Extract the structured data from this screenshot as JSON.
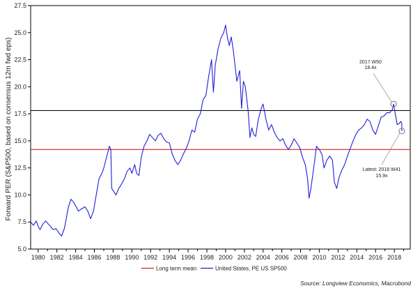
{
  "chart_data": {
    "type": "line",
    "title": "",
    "xlabel": "",
    "ylabel": "Forward PER (S&P500, based on consensus 12m fwd eps)",
    "xlim": [
      1979.2,
      2019.7
    ],
    "ylim": [
      5.0,
      27.5
    ],
    "y_ticks": [
      "5.0",
      "7.5",
      "10.0",
      "12.5",
      "15.0",
      "17.5",
      "20.0",
      "22.5",
      "25.0",
      "27.5"
    ],
    "x_ticks": [
      "1980",
      "1982",
      "1984",
      "1986",
      "1988",
      "1990",
      "1992",
      "1994",
      "1996",
      "1998",
      "2000",
      "2002",
      "2004",
      "2006",
      "2008",
      "2010",
      "2012",
      "2014",
      "2016",
      "2018"
    ],
    "grid": false,
    "legend_position": "bottom",
    "series": [
      {
        "name": "United States, PE US SP500",
        "color": "#1f1fd6",
        "points": [
          [
            1979.2,
            7.5
          ],
          [
            1979.5,
            7.2
          ],
          [
            1979.8,
            7.6
          ],
          [
            1980.0,
            7.1
          ],
          [
            1980.2,
            6.8
          ],
          [
            1980.5,
            7.3
          ],
          [
            1980.8,
            7.6
          ],
          [
            1981.0,
            7.4
          ],
          [
            1981.3,
            7.1
          ],
          [
            1981.6,
            6.8
          ],
          [
            1981.9,
            6.9
          ],
          [
            1982.2,
            6.5
          ],
          [
            1982.5,
            6.2
          ],
          [
            1982.8,
            6.9
          ],
          [
            1983.0,
            7.8
          ],
          [
            1983.2,
            8.8
          ],
          [
            1983.5,
            9.6
          ],
          [
            1983.8,
            9.3
          ],
          [
            1984.0,
            9.0
          ],
          [
            1984.3,
            8.5
          ],
          [
            1984.6,
            8.7
          ],
          [
            1985.0,
            8.9
          ],
          [
            1985.3,
            8.5
          ],
          [
            1985.6,
            7.8
          ],
          [
            1985.9,
            8.5
          ],
          [
            1986.2,
            10.0
          ],
          [
            1986.5,
            11.5
          ],
          [
            1986.8,
            12.0
          ],
          [
            1987.0,
            12.5
          ],
          [
            1987.3,
            13.5
          ],
          [
            1987.6,
            14.5
          ],
          [
            1987.75,
            14.2
          ],
          [
            1987.85,
            10.6
          ],
          [
            1988.0,
            10.4
          ],
          [
            1988.3,
            10.0
          ],
          [
            1988.6,
            10.6
          ],
          [
            1988.9,
            11.0
          ],
          [
            1989.2,
            11.5
          ],
          [
            1989.5,
            12.2
          ],
          [
            1989.8,
            12.5
          ],
          [
            1990.0,
            12.0
          ],
          [
            1990.3,
            12.8
          ],
          [
            1990.5,
            12.0
          ],
          [
            1990.75,
            11.8
          ],
          [
            1991.0,
            13.5
          ],
          [
            1991.3,
            14.5
          ],
          [
            1991.6,
            15.0
          ],
          [
            1991.9,
            15.6
          ],
          [
            1992.2,
            15.3
          ],
          [
            1992.5,
            15.0
          ],
          [
            1992.8,
            15.5
          ],
          [
            1993.1,
            15.7
          ],
          [
            1993.4,
            15.2
          ],
          [
            1993.7,
            14.9
          ],
          [
            1994.0,
            14.8
          ],
          [
            1994.3,
            13.8
          ],
          [
            1994.6,
            13.2
          ],
          [
            1994.9,
            12.8
          ],
          [
            1995.2,
            13.2
          ],
          [
            1995.5,
            13.8
          ],
          [
            1995.8,
            14.3
          ],
          [
            1996.1,
            15.0
          ],
          [
            1996.4,
            16.0
          ],
          [
            1996.7,
            15.8
          ],
          [
            1997.0,
            17.0
          ],
          [
            1997.3,
            17.5
          ],
          [
            1997.6,
            18.8
          ],
          [
            1997.9,
            19.2
          ],
          [
            1998.2,
            21.0
          ],
          [
            1998.5,
            22.5
          ],
          [
            1998.7,
            19.5
          ],
          [
            1998.9,
            22.0
          ],
          [
            1999.2,
            23.5
          ],
          [
            1999.5,
            24.5
          ],
          [
            1999.8,
            25.0
          ],
          [
            2000.0,
            25.7
          ],
          [
            2000.2,
            24.5
          ],
          [
            2000.4,
            23.8
          ],
          [
            2000.6,
            24.6
          ],
          [
            2000.8,
            23.5
          ],
          [
            2001.0,
            22.0
          ],
          [
            2001.2,
            20.5
          ],
          [
            2001.5,
            21.5
          ],
          [
            2001.7,
            18.0
          ],
          [
            2001.9,
            20.5
          ],
          [
            2002.1,
            20.0
          ],
          [
            2002.4,
            17.8
          ],
          [
            2002.6,
            15.3
          ],
          [
            2002.8,
            16.2
          ],
          [
            2003.0,
            15.6
          ],
          [
            2003.2,
            15.4
          ],
          [
            2003.5,
            17.0
          ],
          [
            2003.8,
            18.0
          ],
          [
            2004.0,
            18.4
          ],
          [
            2004.3,
            17.0
          ],
          [
            2004.6,
            16.0
          ],
          [
            2004.9,
            16.5
          ],
          [
            2005.2,
            15.8
          ],
          [
            2005.5,
            15.3
          ],
          [
            2005.8,
            15.0
          ],
          [
            2006.1,
            15.2
          ],
          [
            2006.4,
            14.6
          ],
          [
            2006.7,
            14.2
          ],
          [
            2007.0,
            14.6
          ],
          [
            2007.3,
            15.2
          ],
          [
            2007.6,
            14.8
          ],
          [
            2007.9,
            14.4
          ],
          [
            2008.2,
            13.5
          ],
          [
            2008.5,
            12.8
          ],
          [
            2008.75,
            11.5
          ],
          [
            2008.9,
            9.7
          ],
          [
            2009.1,
            10.6
          ],
          [
            2009.4,
            12.5
          ],
          [
            2009.7,
            14.5
          ],
          [
            2010.0,
            14.2
          ],
          [
            2010.3,
            13.7
          ],
          [
            2010.5,
            12.5
          ],
          [
            2010.8,
            13.2
          ],
          [
            2011.1,
            13.6
          ],
          [
            2011.4,
            13.2
          ],
          [
            2011.6,
            11.2
          ],
          [
            2011.85,
            10.6
          ],
          [
            2012.1,
            11.6
          ],
          [
            2012.4,
            12.3
          ],
          [
            2012.7,
            12.8
          ],
          [
            2013.0,
            13.6
          ],
          [
            2013.3,
            14.3
          ],
          [
            2013.6,
            15.0
          ],
          [
            2013.9,
            15.6
          ],
          [
            2014.2,
            16.0
          ],
          [
            2014.5,
            16.2
          ],
          [
            2014.8,
            16.5
          ],
          [
            2015.1,
            17.0
          ],
          [
            2015.4,
            16.8
          ],
          [
            2015.7,
            16.0
          ],
          [
            2016.0,
            15.6
          ],
          [
            2016.3,
            16.4
          ],
          [
            2016.6,
            17.2
          ],
          [
            2016.9,
            17.3
          ],
          [
            2017.2,
            17.6
          ],
          [
            2017.5,
            17.6
          ],
          [
            2017.8,
            17.9
          ],
          [
            2017.93,
            18.4
          ],
          [
            2018.1,
            17.5
          ],
          [
            2018.3,
            16.5
          ],
          [
            2018.5,
            16.6
          ],
          [
            2018.7,
            16.8
          ],
          [
            2018.8,
            16.6
          ],
          [
            2018.8,
            15.9
          ]
        ]
      },
      {
        "name": "Long term mean",
        "color": "#d42424",
        "value": 14.2
      }
    ],
    "reference_lines": [
      {
        "value": 17.8,
        "color": "#000000",
        "label": ""
      }
    ],
    "annotations": [
      {
        "id": "peak",
        "x": 2017.93,
        "y": 18.4,
        "lines": [
          "2017 W50",
          "18.4x"
        ]
      },
      {
        "id": "latest",
        "x": 2018.8,
        "y": 15.9,
        "lines": [
          "Latest: 2018 W41",
          "15.9x"
        ]
      }
    ],
    "legend": [
      {
        "label": "Long term mean",
        "color": "#d42424"
      },
      {
        "label": "United States, PE US SP500",
        "color": "#1f1fd6"
      }
    ]
  },
  "footer": {
    "source": "Source: Longview Economics, Macrobond"
  }
}
